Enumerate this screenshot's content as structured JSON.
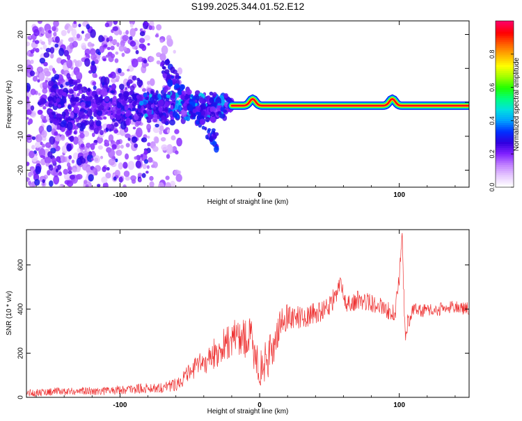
{
  "title": "S199.2025.344.01.52.E12",
  "chart_data": [
    {
      "type": "heatmap",
      "name": "spectrogram",
      "xlabel": "Height of straight line (km)",
      "ylabel": "Frequency (Hz)",
      "xlim": [
        -167,
        150
      ],
      "ylim": [
        -25,
        24
      ],
      "xticks": [
        -100,
        0,
        100
      ],
      "yticks": [
        -20,
        -10,
        0,
        10,
        20
      ],
      "ridge": {
        "x_start": -20,
        "x_end": 150,
        "frequency": -1,
        "bumps": [
          {
            "x": -5,
            "df": 2
          },
          {
            "x": 95,
            "df": 2
          }
        ]
      },
      "colorbar": {
        "label": "Normalized spectral amplitude",
        "range": [
          0,
          1
        ],
        "ticks": [
          "0.0",
          "0.2",
          "0.4",
          "0.6",
          "0.8"
        ],
        "tick_values": [
          0,
          0.2,
          0.4,
          0.6,
          0.8
        ],
        "colors": [
          "#ffffff",
          "#e6c8ff",
          "#c080ff",
          "#8020ff",
          "#3000e0",
          "#0030ff",
          "#00a0ff",
          "#00e0e0",
          "#00ff80",
          "#20ff00",
          "#a0ff00",
          "#ffff00",
          "#ffb000",
          "#ff6000",
          "#ff0000",
          "#ff0060"
        ]
      }
    },
    {
      "type": "line",
      "name": "snr",
      "xlabel": "Height of straight line (km)",
      "ylabel": "SNR (10 * v/v)",
      "xlim": [
        -167,
        150
      ],
      "ylim": [
        0,
        760
      ],
      "xticks": [
        -100,
        0,
        100
      ],
      "yticks": [
        0,
        200,
        400,
        600
      ],
      "series": [
        {
          "name": "SNR",
          "color": "#ee3333",
          "x": [
            -167,
            -150,
            -130,
            -110,
            -90,
            -70,
            -60,
            -52,
            -45,
            -35,
            -25,
            -15,
            -5,
            0,
            8,
            15,
            20,
            30,
            40,
            45,
            50,
            56,
            58,
            62,
            70,
            80,
            90,
            97,
            100,
            102,
            104,
            110,
            120,
            130,
            140,
            150
          ],
          "values": [
            20,
            25,
            28,
            30,
            38,
            45,
            60,
            100,
            140,
            180,
            240,
            280,
            250,
            120,
            200,
            330,
            370,
            360,
            380,
            390,
            420,
            470,
            530,
            420,
            440,
            430,
            400,
            380,
            520,
            760,
            300,
            400,
            390,
            400,
            410,
            400
          ],
          "spread": [
            18,
            18,
            18,
            20,
            22,
            25,
            30,
            40,
            50,
            70,
            80,
            90,
            110,
            90,
            90,
            70,
            60,
            50,
            50,
            50,
            50,
            50,
            30,
            40,
            45,
            45,
            40,
            40,
            60,
            20,
            60,
            30,
            30,
            30,
            30,
            30
          ]
        }
      ]
    }
  ]
}
